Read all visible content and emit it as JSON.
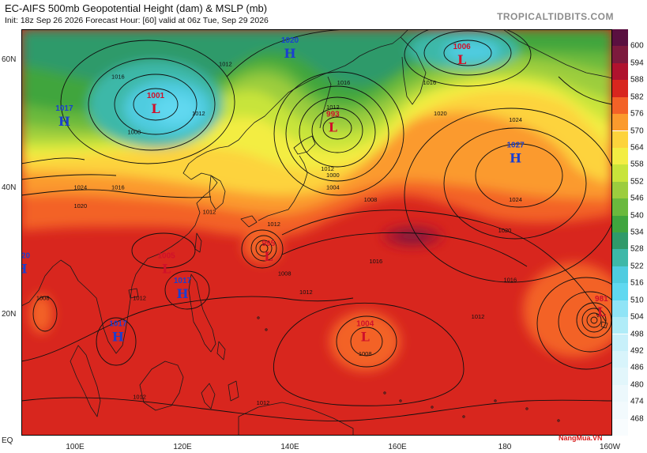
{
  "header": {
    "title": "EC-AIFS 500mb Geopotential Height (dam) & MSLP (mb)",
    "subtitle": "Init: 18z Sep 26 2026   Forecast Hour: [60]   valid at 06z Tue, Sep 29 2026",
    "source": "TROPICALTIDBITS.COM"
  },
  "axes": {
    "lat_labels": [
      "60N",
      "40N",
      "20N",
      "EQ"
    ],
    "lon_labels": [
      "100E",
      "120E",
      "140E",
      "160E",
      "180",
      "160W"
    ]
  },
  "colorbar": {
    "labels": [
      "600",
      "594",
      "588",
      "582",
      "576",
      "570",
      "564",
      "558",
      "552",
      "546",
      "540",
      "534",
      "528",
      "522",
      "516",
      "510",
      "504",
      "498",
      "492",
      "486",
      "480",
      "474",
      "468"
    ],
    "colors": [
      "#7d1a3d",
      "#b0122e",
      "#d8261e",
      "#f36227",
      "#fb9a2d",
      "#fdd33c",
      "#f3ed43",
      "#c8e43a",
      "#9ccd3e",
      "#6ab93d",
      "#3fa53e",
      "#2f9a6a",
      "#3db8a8",
      "#4fcce0",
      "#60d8f0",
      "#90e4f6",
      "#b0ecf8",
      "#c8f0fa",
      "#d8f4fb",
      "#e2f6fb",
      "#ecf8fc",
      "#f2fafd",
      "#f8fcfe"
    ]
  },
  "pressure_centers": [
    {
      "type": "H",
      "value": "1020",
      "lon": 140,
      "lat": 62,
      "color": "#1a3fd0"
    },
    {
      "type": "L",
      "value": "1006",
      "lon": 172,
      "lat": 61,
      "color": "#d0102a"
    },
    {
      "type": "H",
      "value": "1017",
      "lon": 98,
      "lat": 51,
      "color": "#1a3fd0"
    },
    {
      "type": "L",
      "value": "1001",
      "lon": 115,
      "lat": 53,
      "color": "#d0102a"
    },
    {
      "type": "L",
      "value": "993",
      "lon": 148,
      "lat": 50,
      "color": "#d0102a"
    },
    {
      "type": "H",
      "value": "1027",
      "lon": 182,
      "lat": 45,
      "color": "#1a3fd0"
    },
    {
      "type": "L",
      "value": "995",
      "lon": 136,
      "lat": 29,
      "color": "#d0102a"
    },
    {
      "type": "L",
      "value": "1005",
      "lon": 117,
      "lat": 27,
      "color": "#d0102a"
    },
    {
      "type": "H",
      "value": "1020",
      "lon": 90,
      "lat": 27,
      "color": "#1a3fd0"
    },
    {
      "type": "H",
      "value": "1017",
      "lon": 120,
      "lat": 23,
      "color": "#1a3fd0"
    },
    {
      "type": "H",
      "value": "1017",
      "lon": 108,
      "lat": 16,
      "color": "#1a3fd0"
    },
    {
      "type": "L",
      "value": "1004",
      "lon": 154,
      "lat": 16,
      "color": "#d0102a"
    },
    {
      "type": "L",
      "value": "981",
      "lon": 198,
      "lat": 20,
      "color": "#d0102a"
    }
  ],
  "isobar_labels": [
    {
      "text": "1008",
      "lon": 111,
      "lat": 49
    },
    {
      "text": "1012",
      "lon": 123,
      "lat": 52
    },
    {
      "text": "1016",
      "lon": 108,
      "lat": 58
    },
    {
      "text": "1012",
      "lon": 128,
      "lat": 60
    },
    {
      "text": "1016",
      "lon": 150,
      "lat": 57
    },
    {
      "text": "1012",
      "lon": 148,
      "lat": 53
    },
    {
      "text": "1000",
      "lon": 148,
      "lat": 42
    },
    {
      "text": "1004",
      "lon": 148,
      "lat": 40
    },
    {
      "text": "1008",
      "lon": 155,
      "lat": 38
    },
    {
      "text": "1012",
      "lon": 147,
      "lat": 43
    },
    {
      "text": "1016",
      "lon": 108,
      "lat": 40
    },
    {
      "text": "1020",
      "lon": 101,
      "lat": 37
    },
    {
      "text": "1024",
      "lon": 101,
      "lat": 40
    },
    {
      "text": "1012",
      "lon": 125,
      "lat": 36
    },
    {
      "text": "1012",
      "lon": 137,
      "lat": 34
    },
    {
      "text": "1008",
      "lon": 139,
      "lat": 26
    },
    {
      "text": "1016",
      "lon": 156,
      "lat": 28
    },
    {
      "text": "1012",
      "lon": 143,
      "lat": 23
    },
    {
      "text": "1012",
      "lon": 112,
      "lat": 22
    },
    {
      "text": "1008",
      "lon": 94,
      "lat": 22
    },
    {
      "text": "1008",
      "lon": 154,
      "lat": 13
    },
    {
      "text": "1012",
      "lon": 175,
      "lat": 19
    },
    {
      "text": "1016",
      "lon": 181,
      "lat": 25
    },
    {
      "text": "1020",
      "lon": 180,
      "lat": 33
    },
    {
      "text": "1024",
      "lon": 182,
      "lat": 38
    },
    {
      "text": "1016",
      "lon": 166,
      "lat": 57
    },
    {
      "text": "1020",
      "lon": 168,
      "lat": 52
    },
    {
      "text": "1024",
      "lon": 182,
      "lat": 51
    },
    {
      "text": "1012",
      "lon": 112,
      "lat": 6
    },
    {
      "text": "1012",
      "lon": 135,
      "lat": 5
    }
  ],
  "watermark": "NangMua.VN"
}
